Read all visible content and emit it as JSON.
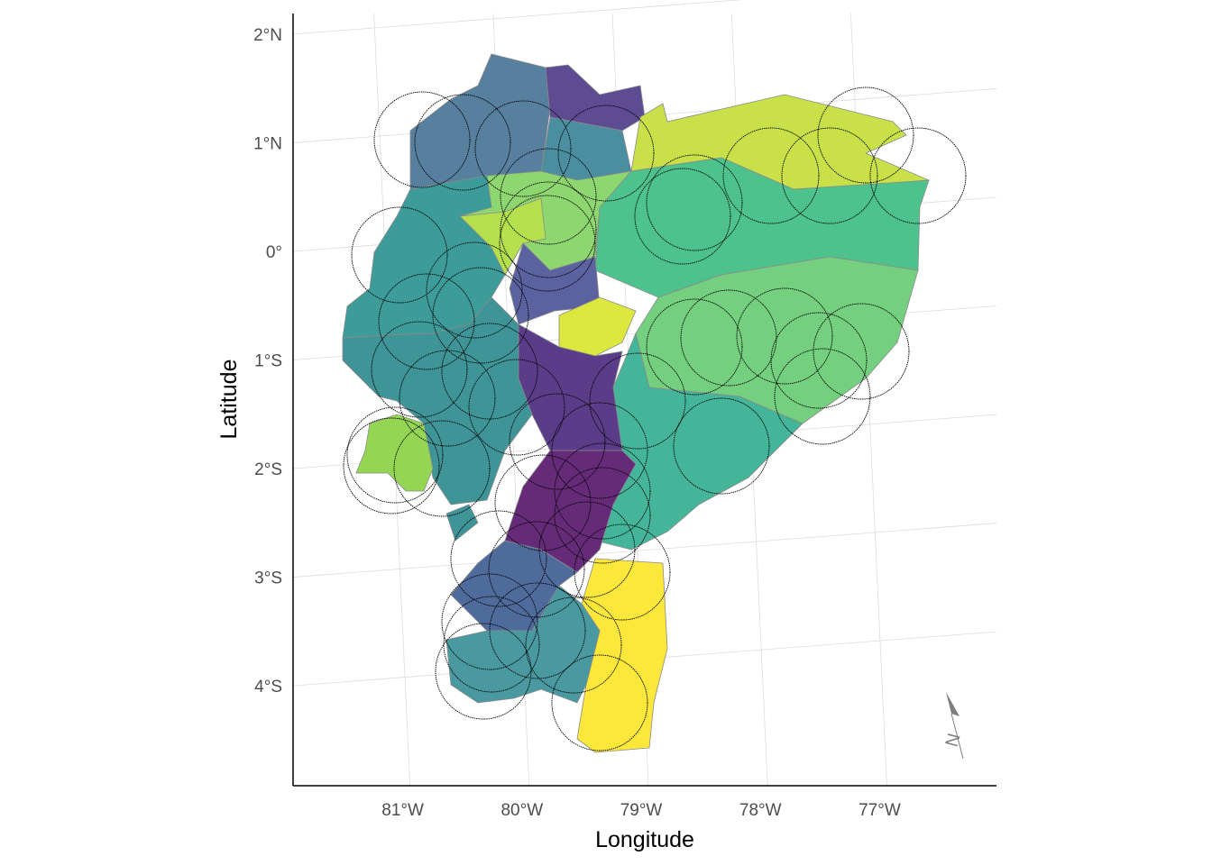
{
  "map": {
    "xlabel": "Longitude",
    "ylabel": "Latitude",
    "north_label": "N",
    "xlim": [
      -81.92,
      -76.02
    ],
    "ylim": [
      -4.92,
      2.19
    ],
    "xticks": [
      {
        "value": -81,
        "label": "81°W"
      },
      {
        "value": -80,
        "label": "80°W"
      },
      {
        "value": -79,
        "label": "79°W"
      },
      {
        "value": -78,
        "label": "78°W"
      },
      {
        "value": -77,
        "label": "77°W"
      }
    ],
    "yticks": [
      {
        "value": 2,
        "label": "2°N"
      },
      {
        "value": 1,
        "label": "1°N"
      },
      {
        "value": 0,
        "label": "0°"
      },
      {
        "value": -1,
        "label": "1°S"
      },
      {
        "value": -2,
        "label": "2°S"
      },
      {
        "value": -3,
        "label": "3°S"
      },
      {
        "value": -4,
        "label": "4°S"
      }
    ]
  }
}
